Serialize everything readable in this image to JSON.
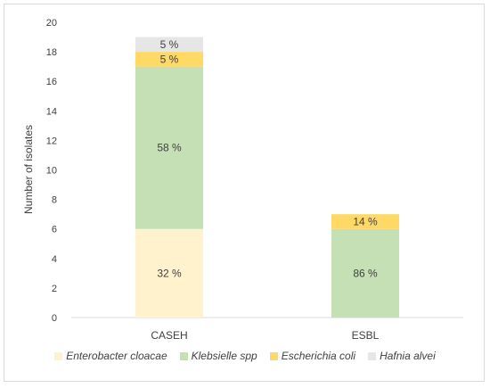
{
  "chart_data": {
    "type": "bar",
    "stacked": true,
    "categories": [
      "CASEH",
      "ESBL"
    ],
    "series": [
      {
        "name": "Enterobacter cloacae",
        "values": [
          6,
          0
        ],
        "labels": [
          "32 %",
          ""
        ],
        "color": "#fff2cc"
      },
      {
        "name": "Klebsielle spp",
        "values": [
          11,
          6
        ],
        "labels": [
          "58 %",
          "86 %"
        ],
        "color": "#c5e0b4"
      },
      {
        "name": "Escherichia coli",
        "values": [
          1,
          1
        ],
        "labels": [
          "5 %",
          "14 %"
        ],
        "color": "#ffd966"
      },
      {
        "name": "Hafnia alvei",
        "values": [
          1,
          0
        ],
        "labels": [
          "5 %",
          ""
        ],
        "color": "#e7e6e6"
      }
    ],
    "ylabel": "Number of isolates",
    "xlabel": "",
    "title": "",
    "ylim": [
      0,
      20
    ],
    "yticks": [
      "0",
      "2",
      "4",
      "6",
      "8",
      "10",
      "12",
      "14",
      "16",
      "18",
      "20"
    ],
    "grid": false,
    "legend": "bottom"
  }
}
